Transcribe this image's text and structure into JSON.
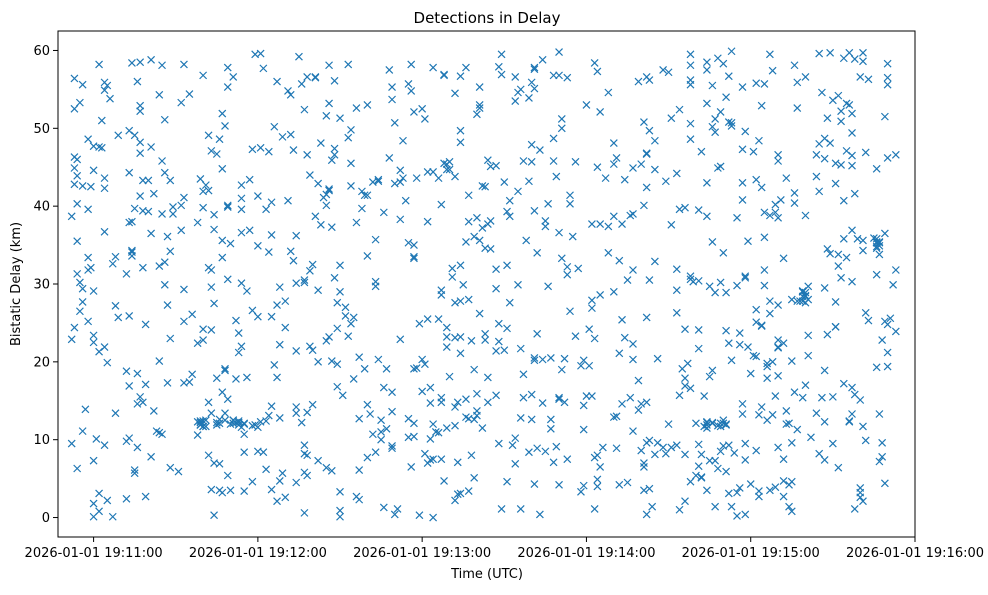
{
  "chart_data": {
    "type": "scatter",
    "title": "Detections in Delay",
    "xlabel": "Time (UTC)",
    "ylabel": "Bistatic Delay (km)",
    "marker": "x",
    "series_color": "#1f77b4",
    "grid": false,
    "legend": "none",
    "x_axis": {
      "kind": "time",
      "start": "2026-01-01 19:10:47",
      "end": "2026-01-01 19:16:00",
      "ticks": [
        "2026-01-01 19:11:00",
        "2026-01-01 19:12:00",
        "2026-01-01 19:13:00",
        "2026-01-01 19:14:00",
        "2026-01-01 19:15:00",
        "2026-01-01 19:16:00"
      ]
    },
    "y_axis": {
      "lim": [
        -2.5,
        62.5
      ],
      "ticks": [
        "0",
        "10",
        "20",
        "30",
        "40",
        "50",
        "60"
      ],
      "tick_values": [
        0,
        10,
        20,
        30,
        40,
        50,
        60
      ]
    },
    "detections_time_start": "2026-01-01 19:10:52",
    "detections_time_end": "2026-01-01 19:15:54",
    "delay_range_km": [
      0,
      60
    ],
    "points": []
  }
}
